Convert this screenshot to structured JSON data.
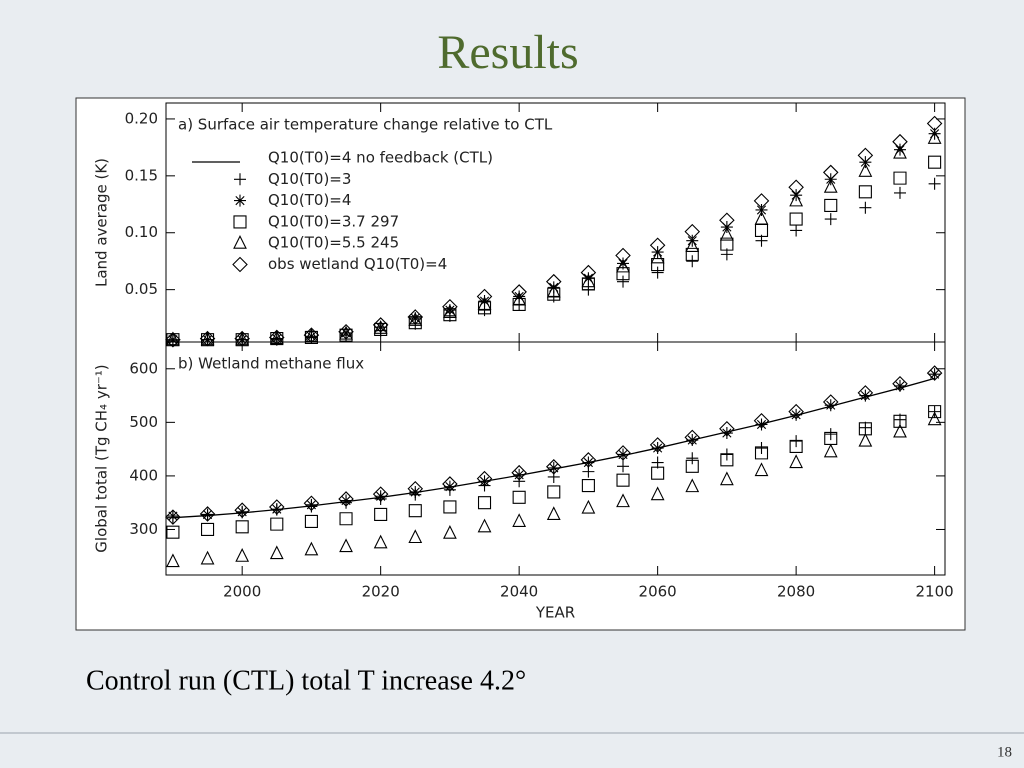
{
  "slide": {
    "title": "Results",
    "caption": "Control run (CTL) total T increase 4.2°",
    "page_number": "18"
  },
  "chart_data": [
    {
      "type": "scatter",
      "title": "a) Surface air temperature change relative to CTL",
      "ylabel": "Land average (K)",
      "x": [
        1990,
        1995,
        2000,
        2005,
        2010,
        2015,
        2020,
        2025,
        2030,
        2035,
        2040,
        2045,
        2050,
        2055,
        2060,
        2065,
        2070,
        2075,
        2080,
        2085,
        2090,
        2095,
        2100
      ],
      "xlim": [
        1989,
        2101.5
      ],
      "xticks": [
        2000,
        2020,
        2040,
        2060,
        2080,
        2100
      ],
      "show_xtick_labels": false,
      "ylim": [
        0.004,
        0.214
      ],
      "yticks": [
        0.05,
        {
          "value": 0.1,
          "label": "0.10"
        },
        0.15,
        {
          "value": 0.2,
          "label": "0.20"
        }
      ],
      "legend": "upper left",
      "series": [
        {
          "name": "Q10(T0)=4 no feedback (CTL)",
          "color": "#000000",
          "marker": "line"
        },
        {
          "name": "Q10(T0)=3",
          "color": "#000000",
          "marker": "plus",
          "values": [
            0.005,
            0.006,
            0.006,
            0.006,
            0.008,
            0.01,
            0.014,
            0.02,
            0.027,
            0.032,
            0.037,
            0.044,
            0.05,
            0.057,
            0.065,
            0.075,
            0.081,
            0.093,
            0.102,
            0.112,
            0.122,
            0.135,
            0.143
          ]
        },
        {
          "name": "Q10(T0)=4",
          "color": "#000000",
          "marker": "star",
          "values": [
            0.006,
            0.006,
            0.006,
            0.007,
            0.009,
            0.012,
            0.017,
            0.025,
            0.032,
            0.04,
            0.044,
            0.052,
            0.06,
            0.073,
            0.083,
            0.093,
            0.105,
            0.12,
            0.133,
            0.147,
            0.162,
            0.173,
            0.187
          ]
        },
        {
          "name": "Q10(T0)=3.7 297",
          "color": "#000000",
          "marker": "square",
          "values": [
            0.006,
            0.006,
            0.006,
            0.007,
            0.008,
            0.01,
            0.015,
            0.021,
            0.028,
            0.034,
            0.037,
            0.046,
            0.055,
            0.064,
            0.072,
            0.081,
            0.09,
            0.102,
            0.112,
            0.124,
            0.136,
            0.148,
            0.162
          ]
        },
        {
          "name": "Q10(T0)=5.5 245",
          "color": "#000000",
          "marker": "triangle",
          "values": [
            0.006,
            0.006,
            0.006,
            0.007,
            0.009,
            0.011,
            0.016,
            0.023,
            0.03,
            0.037,
            0.041,
            0.048,
            0.057,
            0.07,
            0.078,
            0.088,
            0.098,
            0.112,
            0.128,
            0.14,
            0.154,
            0.17,
            0.183
          ]
        },
        {
          "name": "obs wetland Q10(T0)=4",
          "color": "#000000",
          "marker": "diamond",
          "values": [
            0.006,
            0.007,
            0.007,
            0.008,
            0.01,
            0.013,
            0.019,
            0.026,
            0.035,
            0.044,
            0.048,
            0.057,
            0.065,
            0.08,
            0.089,
            0.101,
            0.111,
            0.128,
            0.14,
            0.153,
            0.168,
            0.18,
            0.196
          ]
        }
      ]
    },
    {
      "type": "scatter",
      "title": "b) Wetland methane flux",
      "ylabel": "Global total (Tg CH₄ yr⁻¹)",
      "xlabel": "YEAR",
      "x": [
        1990,
        1995,
        2000,
        2005,
        2010,
        2015,
        2020,
        2025,
        2030,
        2035,
        2040,
        2045,
        2050,
        2055,
        2060,
        2065,
        2070,
        2075,
        2080,
        2085,
        2090,
        2095,
        2100
      ],
      "xlim": [
        1989,
        2101.5
      ],
      "xticks": [
        2000,
        2020,
        2040,
        2060,
        2080,
        2100
      ],
      "show_xtick_labels": true,
      "ylim": [
        215,
        650
      ],
      "yticks": [
        300,
        400,
        500,
        600
      ],
      "series": [
        {
          "color": "#000000",
          "marker": "line",
          "values": [
            322,
            326,
            331,
            337,
            344,
            352,
            360,
            369,
            379,
            390,
            401,
            413,
            425,
            438,
            452,
            467,
            482,
            497,
            513,
            530,
            547,
            564,
            582
          ]
        },
        {
          "color": "#000000",
          "marker": "plus",
          "values": [
            322,
            327,
            332,
            337,
            343,
            350,
            357,
            365,
            374,
            382,
            390,
            398,
            408,
            418,
            425,
            433,
            440,
            452,
            465,
            478,
            490,
            505,
            520
          ]
        },
        {
          "color": "#000000",
          "marker": "star",
          "values": [
            325,
            328,
            333,
            338,
            346,
            354,
            362,
            370,
            380,
            390,
            402,
            415,
            425,
            440,
            452,
            467,
            480,
            496,
            514,
            532,
            550,
            568,
            590
          ]
        },
        {
          "color": "#000000",
          "marker": "square",
          "values": [
            295,
            300,
            305,
            310,
            315,
            320,
            328,
            335,
            342,
            350,
            360,
            370,
            382,
            392,
            405,
            418,
            430,
            443,
            455,
            470,
            488,
            502,
            520
          ]
        },
        {
          "color": "#000000",
          "marker": "triangle",
          "values": [
            240,
            245,
            250,
            255,
            262,
            268,
            275,
            285,
            293,
            305,
            315,
            328,
            340,
            352,
            365,
            380,
            393,
            410,
            425,
            445,
            465,
            482,
            505
          ]
        },
        {
          "color": "#000000",
          "marker": "diamond",
          "values": [
            323,
            329,
            336,
            342,
            349,
            357,
            366,
            376,
            385,
            395,
            406,
            417,
            430,
            443,
            458,
            472,
            488,
            503,
            520,
            538,
            555,
            572,
            592
          ]
        }
      ]
    }
  ]
}
